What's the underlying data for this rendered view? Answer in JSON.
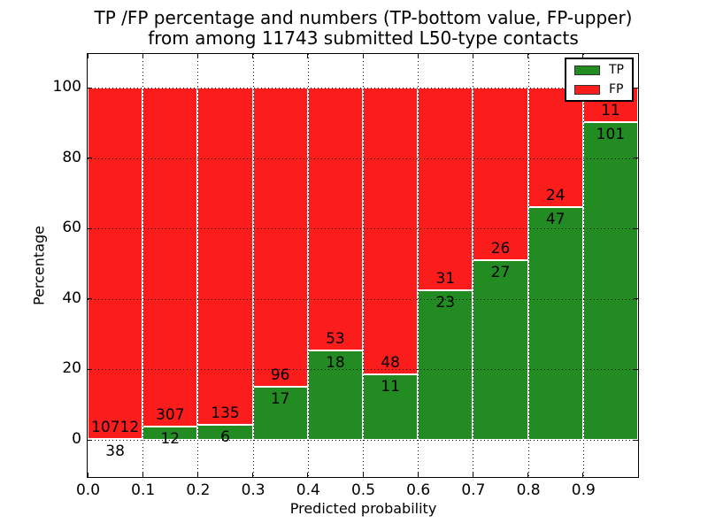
{
  "title": {
    "line1": "TP /FP percentage and numbers (TP-bottom value, FP-upper)",
    "line2": "from among 11743 submitted L50-type contacts"
  },
  "axes": {
    "xlabel": "Predicted probability",
    "ylabel": "Percentage",
    "x_tick_labels": [
      "0.0",
      "0.1",
      "0.2",
      "0.3",
      "0.4",
      "0.5",
      "0.6",
      "0.7",
      "0.8",
      "0.9"
    ],
    "y_tick_labels": [
      "0",
      "20",
      "40",
      "60",
      "80",
      "100"
    ],
    "y_tick_values": [
      0,
      20,
      40,
      60,
      80,
      100
    ]
  },
  "legend": {
    "entries": [
      {
        "label": "TP",
        "color": "#228b22"
      },
      {
        "label": "FP",
        "color": "#fb1c1c"
      }
    ]
  },
  "colors": {
    "tp_green": "#228b22",
    "fp_red": "#fb1c1c",
    "bar_edge": "#ffffff",
    "grid": "#000000"
  },
  "chart_data": {
    "type": "bar",
    "stacked": true,
    "normalized_to_percent": true,
    "title": "TP /FP percentage and numbers (TP-bottom value, FP-upper) from among 11743 submitted L50-type contacts",
    "xlabel": "Predicted probability",
    "ylabel": "Percentage",
    "xlim": [
      0.0,
      1.0
    ],
    "ylim": [
      -10.5,
      109.5
    ],
    "bin_width": 0.1,
    "grid": "dotted, drawn over bars",
    "legend_position": "upper right",
    "categories": [
      "0.0-0.1",
      "0.1-0.2",
      "0.2-0.3",
      "0.3-0.4",
      "0.4-0.5",
      "0.5-0.6",
      "0.6-0.7",
      "0.7-0.8",
      "0.8-0.9",
      "0.9-1.0"
    ],
    "series": [
      {
        "name": "TP",
        "color": "#228b22",
        "counts": [
          38,
          12,
          6,
          17,
          18,
          11,
          23,
          27,
          47,
          101
        ],
        "percent": [
          0.35,
          3.76,
          4.26,
          15.04,
          25.35,
          18.64,
          42.59,
          50.94,
          66.2,
          90.18
        ]
      },
      {
        "name": "FP",
        "color": "#fb1c1c",
        "counts": [
          10712,
          307,
          135,
          96,
          53,
          48,
          31,
          26,
          24,
          11
        ],
        "percent": [
          99.65,
          96.24,
          95.74,
          84.96,
          74.65,
          81.36,
          57.41,
          49.06,
          33.8,
          9.82
        ]
      }
    ],
    "total_submitted_contacts": 11743
  }
}
